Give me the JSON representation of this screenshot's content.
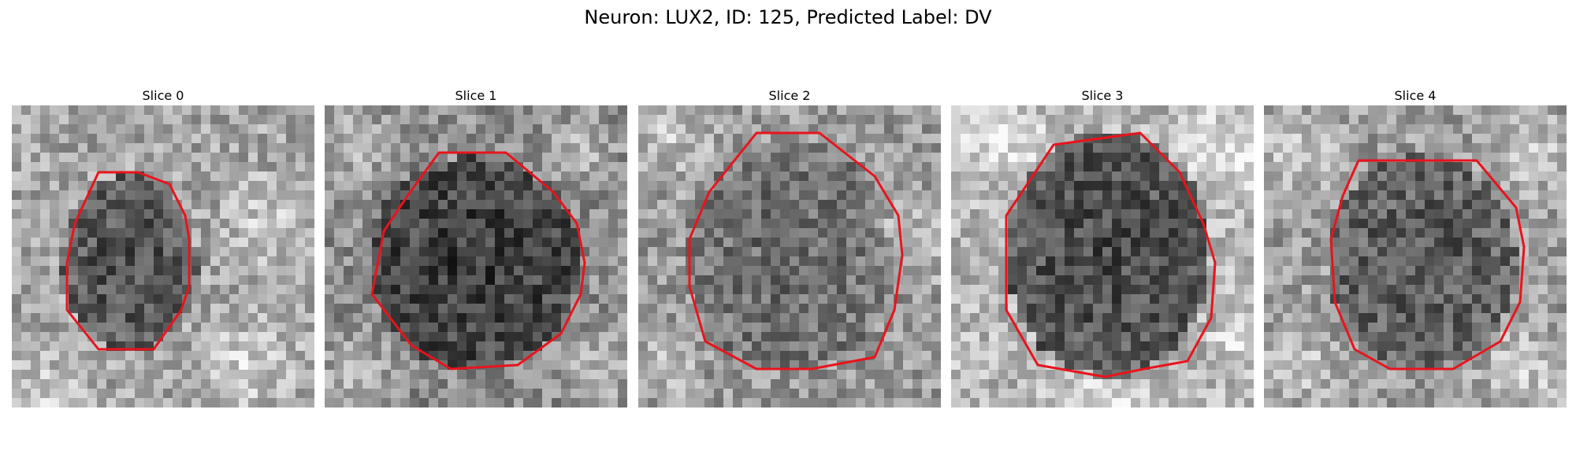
{
  "figure": {
    "title": "Neuron: LUX2, ID: 125, Predicted Label: DV",
    "contour_color": "#e8141c"
  },
  "panels": [
    {
      "title": "Slice 0",
      "pattern": "small-dark-blob-center-left"
    },
    {
      "title": "Slice 1",
      "pattern": "large-dark-blob"
    },
    {
      "title": "Slice 2",
      "pattern": "medium-gray-blob"
    },
    {
      "title": "Slice 3",
      "pattern": "dark-blob-light-surround"
    },
    {
      "title": "Slice 4",
      "pattern": "medium-dark-blob"
    }
  ]
}
